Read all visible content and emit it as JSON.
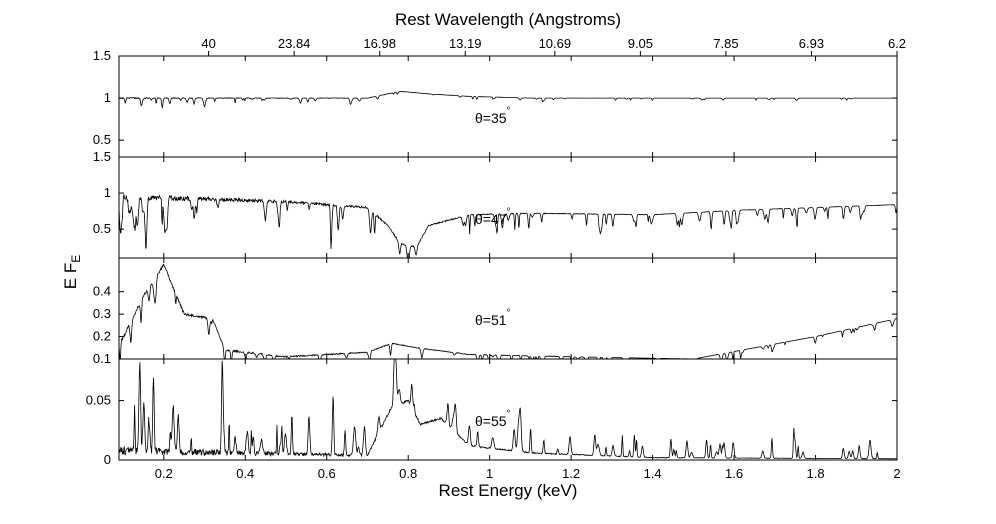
{
  "chart_data": {
    "type": "line",
    "xlabel": "Rest Energy (keV)",
    "x2label": "Rest Wavelength (Angstroms)",
    "ylabel": "E F",
    "ylabel_sub": "E",
    "xlim": [
      0.09,
      2.0
    ],
    "x_ticks": [
      0.2,
      0.4,
      0.6,
      0.8,
      1,
      1.2,
      1.4,
      1.6,
      1.8,
      2
    ],
    "x_tick_labels": [
      "0.2",
      "0.4",
      "0.6",
      "0.8",
      "1",
      "1.2",
      "1.4",
      "1.6",
      "1.8",
      "2"
    ],
    "top_ticks": [
      0.31,
      0.52,
      0.73,
      0.94,
      1.16,
      1.37,
      1.58,
      1.79,
      2.0
    ],
    "top_tick_labels": [
      "40",
      "23.84",
      "16.98",
      "13.19",
      "10.69",
      "9.05",
      "7.85",
      "6.93",
      "6.2"
    ],
    "degree_symbol": "°",
    "panels": [
      {
        "name": "theta-35",
        "theta_label": "θ=35",
        "ylim": [
          0.3,
          1.5
        ],
        "y_ticks": [
          0.5,
          1,
          1.5
        ],
        "y_tick_labels": [
          "0.5",
          "1",
          "1.5"
        ],
        "continuum": [
          [
            0.09,
            1.0
          ],
          [
            0.7,
            1.0
          ],
          [
            0.78,
            1.08
          ],
          [
            0.85,
            1.05
          ],
          [
            0.95,
            1.02
          ],
          [
            1.1,
            1.0
          ],
          [
            2.0,
            1.0
          ]
        ],
        "line_density": 60,
        "line_depth": 0.05
      },
      {
        "name": "theta-47",
        "theta_label": "θ=47",
        "ylim": [
          0.1,
          1.5
        ],
        "y_ticks": [
          0.5,
          1,
          1.5
        ],
        "y_tick_labels": [
          "0.5",
          "1",
          "1.5"
        ],
        "continuum": [
          [
            0.09,
            0.95
          ],
          [
            0.3,
            0.92
          ],
          [
            0.5,
            0.88
          ],
          [
            0.7,
            0.8
          ],
          [
            0.75,
            0.55
          ],
          [
            0.78,
            0.3
          ],
          [
            0.82,
            0.25
          ],
          [
            0.85,
            0.55
          ],
          [
            0.95,
            0.7
          ],
          [
            1.1,
            0.72
          ],
          [
            1.4,
            0.7
          ],
          [
            1.6,
            0.76
          ],
          [
            2.0,
            0.84
          ]
        ],
        "line_density": 90,
        "line_depth": 0.35
      },
      {
        "name": "theta-51",
        "theta_label": "θ=51",
        "ylim": [
          0.1,
          0.55
        ],
        "y_ticks": [
          0.1,
          0.2,
          0.3,
          0.4
        ],
        "y_tick_labels": [
          "0.1",
          "0.2",
          "0.3",
          "0.4"
        ],
        "continuum": [
          [
            0.09,
            0.16
          ],
          [
            0.15,
            0.38
          ],
          [
            0.2,
            0.52
          ],
          [
            0.25,
            0.3
          ],
          [
            0.32,
            0.28
          ],
          [
            0.35,
            0.14
          ],
          [
            0.5,
            0.11
          ],
          [
            0.7,
            0.13
          ],
          [
            0.76,
            0.17
          ],
          [
            0.82,
            0.15
          ],
          [
            0.95,
            0.12
          ],
          [
            1.2,
            0.11
          ],
          [
            1.5,
            0.1
          ],
          [
            1.8,
            0.2
          ],
          [
            2.0,
            0.28
          ]
        ],
        "line_density": 80,
        "line_depth": 0.06
      },
      {
        "name": "theta-55",
        "theta_label": "θ=55",
        "ylim": [
          0.0,
          0.085
        ],
        "y_ticks": [
          0,
          0.05
        ],
        "y_tick_labels": [
          "0",
          "0.05"
        ],
        "continuum": [
          [
            0.09,
            0.008
          ],
          [
            0.35,
            0.006
          ],
          [
            0.7,
            0.004
          ],
          [
            0.76,
            0.045
          ],
          [
            0.8,
            0.05
          ],
          [
            0.83,
            0.03
          ],
          [
            0.88,
            0.035
          ],
          [
            0.95,
            0.012
          ],
          [
            1.1,
            0.006
          ],
          [
            1.4,
            0.002
          ],
          [
            2.0,
            0.001
          ]
        ],
        "line_density": 90,
        "line_depth": 0.03
      }
    ]
  }
}
